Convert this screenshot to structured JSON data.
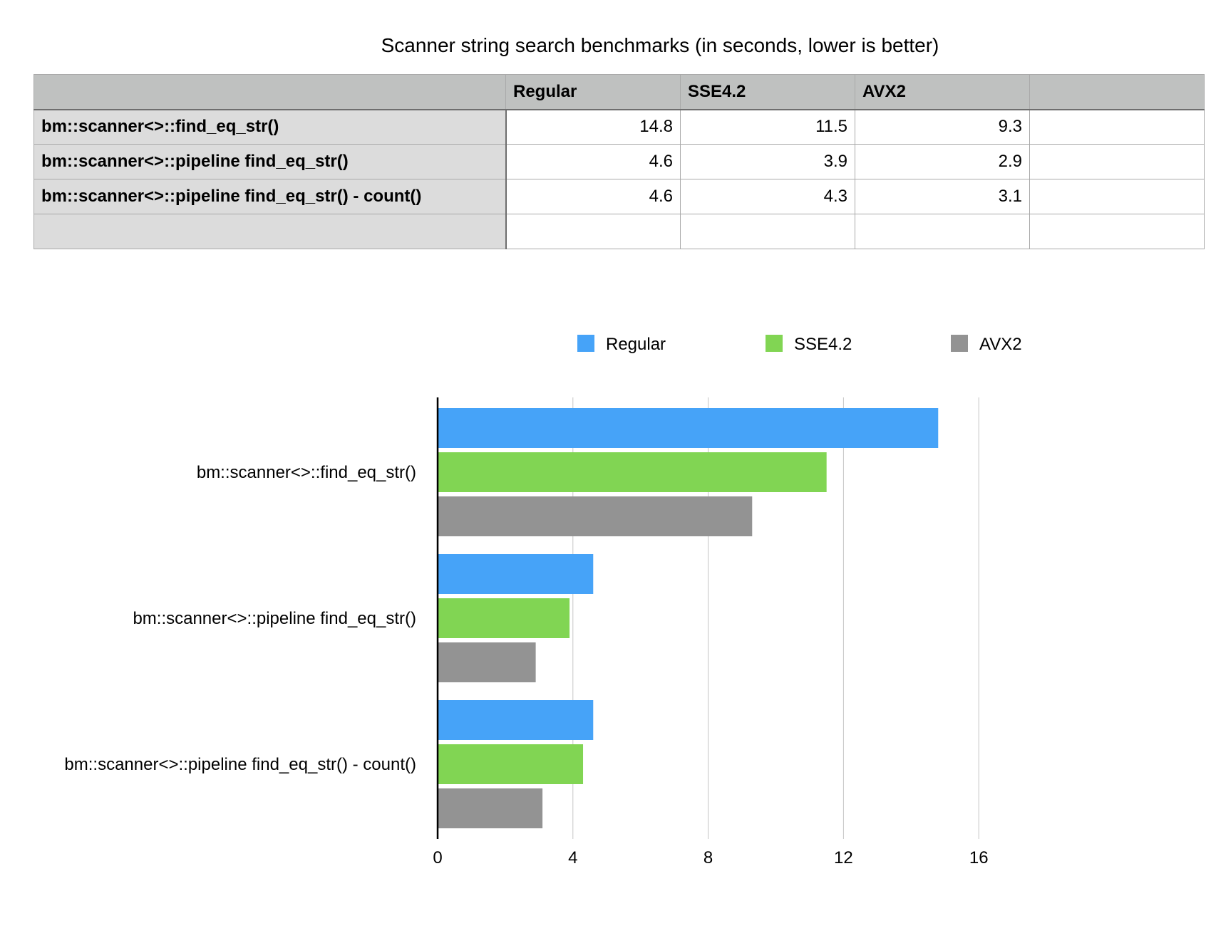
{
  "table": {
    "title": "Scanner string search benchmarks (in seconds, lower is better)",
    "headers": [
      "",
      "Regular",
      "SSE4.2",
      "AVX2",
      ""
    ],
    "rows": [
      {
        "label": "bm::scanner<>::find_eq_str()",
        "values": [
          "14.8",
          "11.5",
          "9.3",
          ""
        ]
      },
      {
        "label": "bm::scanner<>::pipeline find_eq_str()",
        "values": [
          "4.6",
          "3.9",
          "2.9",
          ""
        ]
      },
      {
        "label": "bm::scanner<>::pipeline find_eq_str() - count()",
        "values": [
          "4.6",
          "4.3",
          "3.1",
          ""
        ]
      },
      {
        "label": "",
        "values": [
          "",
          "",
          "",
          ""
        ]
      }
    ]
  },
  "chart_data": {
    "type": "bar",
    "orientation": "horizontal",
    "categories": [
      "bm::scanner<>::find_eq_str()",
      "bm::scanner<>::pipeline find_eq_str()",
      "bm::scanner<>::pipeline find_eq_str() - count()"
    ],
    "series": [
      {
        "name": "Regular",
        "color": "#46a3f8",
        "values": [
          14.8,
          4.6,
          4.6
        ]
      },
      {
        "name": "SSE4.2",
        "color": "#81d553",
        "values": [
          11.5,
          3.9,
          4.3
        ]
      },
      {
        "name": "AVX2",
        "color": "#939393",
        "values": [
          9.3,
          2.9,
          3.1
        ]
      }
    ],
    "x_ticks": [
      0,
      4,
      8,
      12,
      16
    ],
    "xlim": [
      0,
      16
    ],
    "grid": true,
    "legend_position": "top"
  }
}
